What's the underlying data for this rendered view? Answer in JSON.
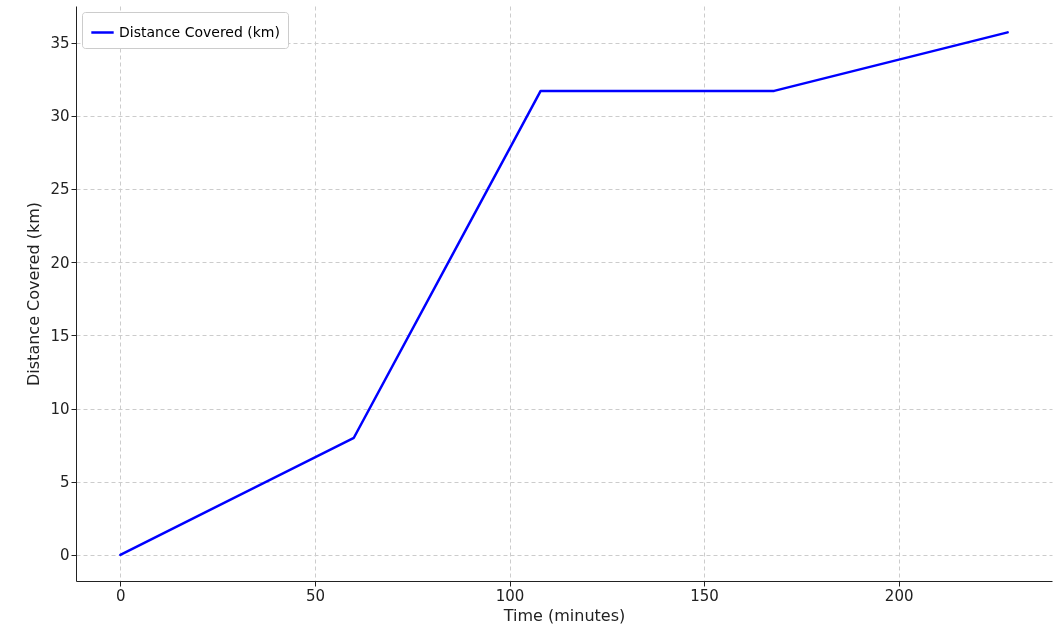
{
  "chart_data": {
    "type": "line",
    "xlabel": "Time (minutes)",
    "ylabel": "Distance Covered (km)",
    "x": [
      0,
      60,
      108,
      168,
      228
    ],
    "series": [
      {
        "name": "Distance Covered (km)",
        "color": "#0000ff",
        "values": [
          0,
          8,
          31.7,
          31.7,
          35.7
        ]
      }
    ],
    "xlim": [
      -11.4,
      239.4
    ],
    "ylim": [
      -1.785,
      37.5
    ],
    "xticks": [
      0,
      50,
      100,
      150,
      200
    ],
    "yticks": [
      0,
      5,
      10,
      15,
      20,
      25,
      30,
      35
    ],
    "grid": true,
    "legend": "top left",
    "marker": "none",
    "line_style": "solid"
  }
}
